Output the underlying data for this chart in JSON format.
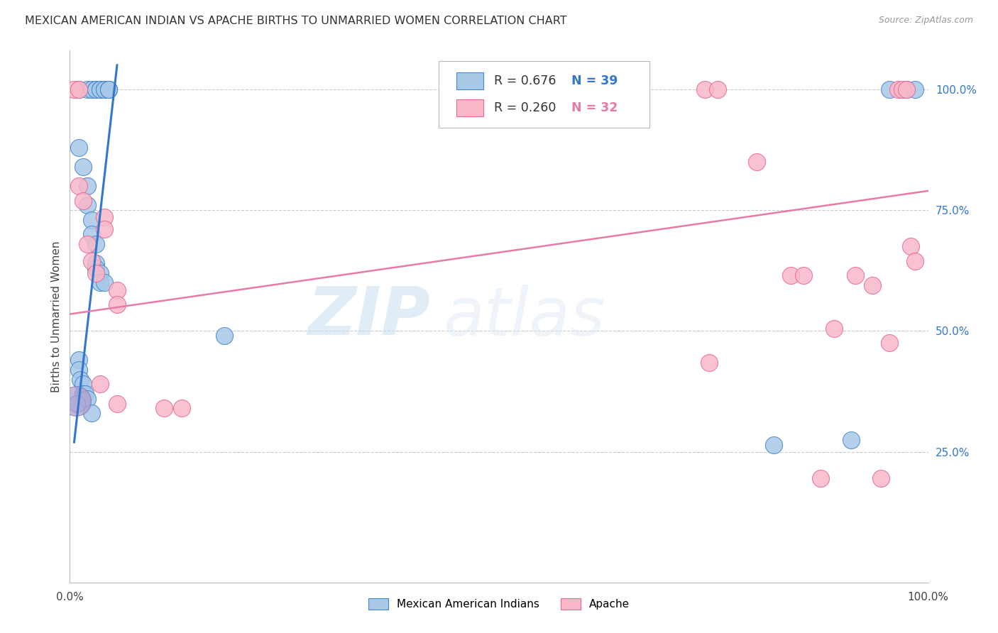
{
  "title": "MEXICAN AMERICAN INDIAN VS APACHE BIRTHS TO UNMARRIED WOMEN CORRELATION CHART",
  "source": "Source: ZipAtlas.com",
  "ylabel": "Births to Unmarried Women",
  "xlim": [
    0.0,
    1.0
  ],
  "ylim": [
    -0.02,
    1.08
  ],
  "ytick_labels_right": [
    "100.0%",
    "75.0%",
    "50.0%",
    "25.0%"
  ],
  "yticks_right": [
    1.0,
    0.75,
    0.5,
    0.25
  ],
  "blue_color": "#a8c8e8",
  "pink_color": "#f8b8c8",
  "blue_edge_color": "#4488cc",
  "pink_edge_color": "#e86898",
  "blue_line_color": "#3377cc",
  "pink_line_color": "#e87aa8",
  "watermark_zip": "ZIP",
  "watermark_atlas": "atlas",
  "blue_scatter_x": [
    0.01,
    0.02,
    0.025,
    0.03,
    0.03,
    0.035,
    0.035,
    0.04,
    0.04,
    0.045,
    0.045,
    0.045,
    0.01,
    0.015,
    0.02,
    0.02,
    0.025,
    0.025,
    0.03,
    0.03,
    0.03,
    0.035,
    0.035,
    0.04,
    0.01,
    0.01,
    0.012,
    0.015,
    0.015,
    0.018,
    0.02,
    0.008,
    0.025,
    0.18,
    0.82,
    0.91,
    0.955,
    0.975,
    0.985
  ],
  "blue_scatter_y": [
    1.0,
    1.0,
    1.0,
    1.0,
    1.0,
    1.0,
    1.0,
    1.0,
    1.0,
    1.0,
    1.0,
    1.0,
    0.88,
    0.84,
    0.8,
    0.76,
    0.73,
    0.7,
    0.68,
    0.64,
    0.63,
    0.62,
    0.6,
    0.6,
    0.44,
    0.42,
    0.4,
    0.39,
    0.37,
    0.37,
    0.36,
    0.35,
    0.33,
    0.49,
    0.265,
    0.275,
    1.0,
    1.0,
    1.0
  ],
  "pink_scatter_x": [
    0.005,
    0.01,
    0.01,
    0.02,
    0.025,
    0.03,
    0.04,
    0.04,
    0.055,
    0.055,
    0.11,
    0.13,
    0.74,
    0.755,
    0.8,
    0.84,
    0.855,
    0.89,
    0.915,
    0.935,
    0.955,
    0.965,
    0.97,
    0.975,
    0.98,
    0.985,
    0.015,
    0.035,
    0.055,
    0.745,
    0.875,
    0.945
  ],
  "pink_scatter_y": [
    1.0,
    1.0,
    0.8,
    0.68,
    0.645,
    0.62,
    0.735,
    0.71,
    0.585,
    0.555,
    0.34,
    0.34,
    1.0,
    1.0,
    0.85,
    0.615,
    0.615,
    0.505,
    0.615,
    0.595,
    0.475,
    1.0,
    1.0,
    1.0,
    0.675,
    0.645,
    0.77,
    0.39,
    0.35,
    0.435,
    0.195,
    0.195
  ],
  "blue_trendline_x": [
    0.005,
    0.055
  ],
  "blue_trendline_y": [
    0.27,
    1.05
  ],
  "pink_trendline_x": [
    0.0,
    1.0
  ],
  "pink_trendline_y": [
    0.535,
    0.79
  ],
  "dot_size": 300,
  "large_dot_size": 900
}
